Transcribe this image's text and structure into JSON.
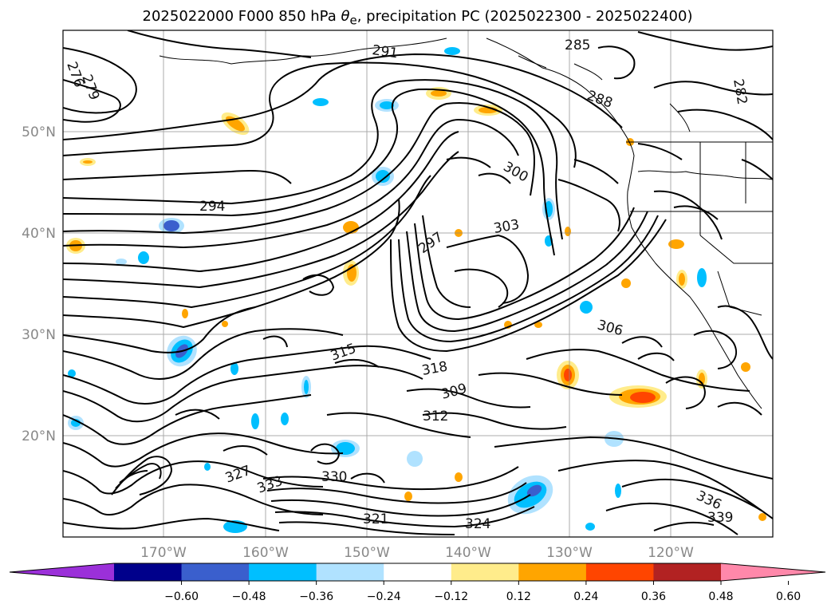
{
  "title": {
    "prefix": "2025022000 F000 850 hPa ",
    "symbol": "θ",
    "subscript": "e",
    "suffix": ", precipitation PC (2025022300 - 2025022400)"
  },
  "map": {
    "lat_labels": [
      "50°N",
      "40°N",
      "30°N",
      "20°N"
    ],
    "lon_labels": [
      "170°W",
      "160°W",
      "150°W",
      "140°W",
      "130°W",
      "120°W"
    ],
    "grid": true,
    "contour_variable": "850 hPa theta-e",
    "contour_labels": [
      "276",
      "279",
      "282",
      "285",
      "288",
      "291",
      "294",
      "297",
      "300",
      "303",
      "306",
      "309",
      "312",
      "315",
      "318",
      "321",
      "324",
      "327",
      "330",
      "333",
      "336",
      "339"
    ]
  },
  "colorbar": {
    "ticks": [
      "−0.60",
      "−0.48",
      "−0.36",
      "−0.24",
      "−0.12",
      "0.12",
      "0.24",
      "0.36",
      "0.48",
      "0.60"
    ],
    "colors": [
      "#9b30d9",
      "#00008b",
      "#3a5fcd",
      "#00bfff",
      "#b0e2ff",
      "#ffffff",
      "#ffec8b",
      "#ffa500",
      "#ff4500",
      "#b22222",
      "#ff88aa"
    ],
    "extend": "both"
  }
}
